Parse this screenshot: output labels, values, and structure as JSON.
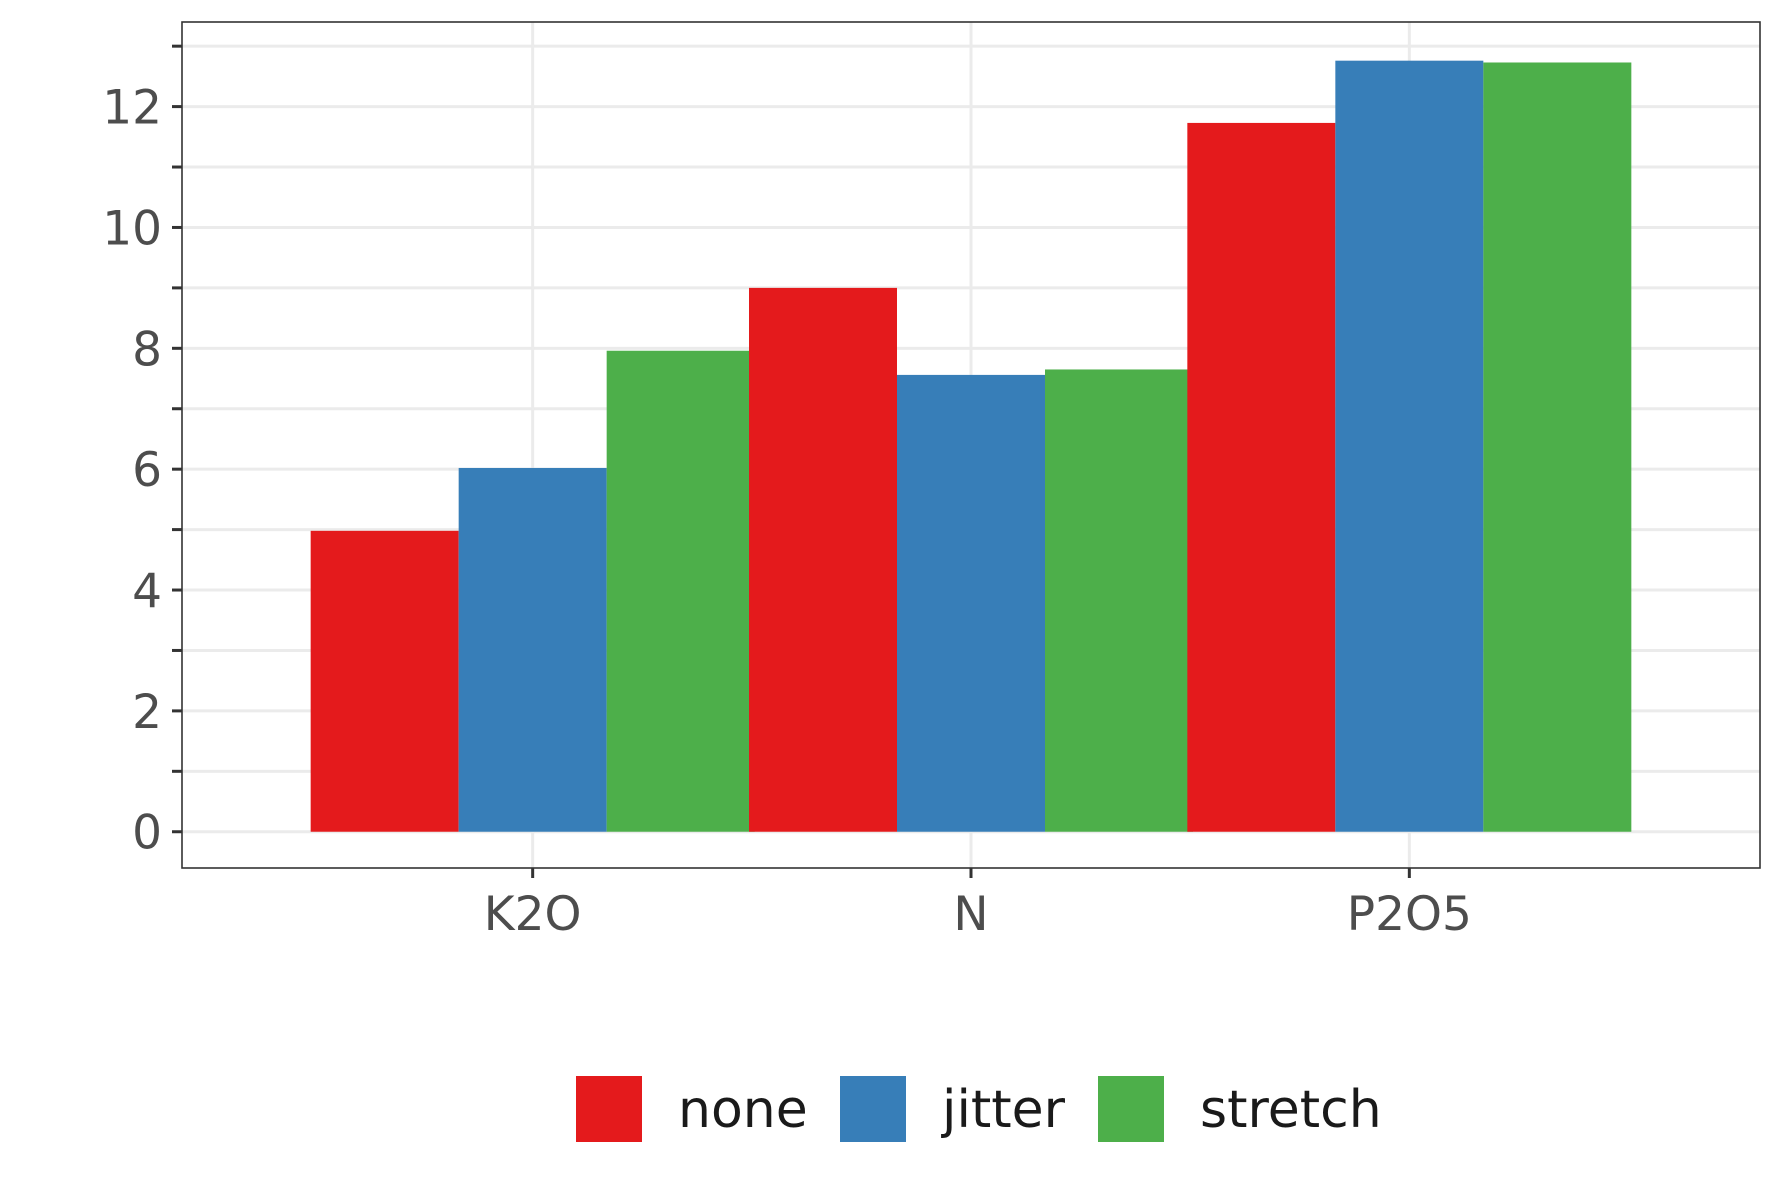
{
  "chart_data": {
    "type": "bar",
    "title": "",
    "xlabel": "",
    "ylabel": "",
    "categories": [
      "K2O",
      "N",
      "P2O5"
    ],
    "series": [
      {
        "name": "none",
        "color": "#e41a1c",
        "values": [
          4.98,
          9.0,
          11.73
        ]
      },
      {
        "name": "jitter",
        "color": "#377eb8",
        "values": [
          6.02,
          7.56,
          12.76
        ]
      },
      {
        "name": "stretch",
        "color": "#4daf4a",
        "values": [
          7.96,
          7.65,
          12.73
        ]
      }
    ],
    "ylim": [
      -0.6,
      13.4
    ],
    "yticks": [
      0,
      2,
      4,
      6,
      8,
      10,
      12
    ],
    "ytick_labels": [
      "0",
      "2",
      "4",
      "6",
      "8",
      "10",
      "12"
    ],
    "grid": true,
    "legend_position": "bottom"
  }
}
